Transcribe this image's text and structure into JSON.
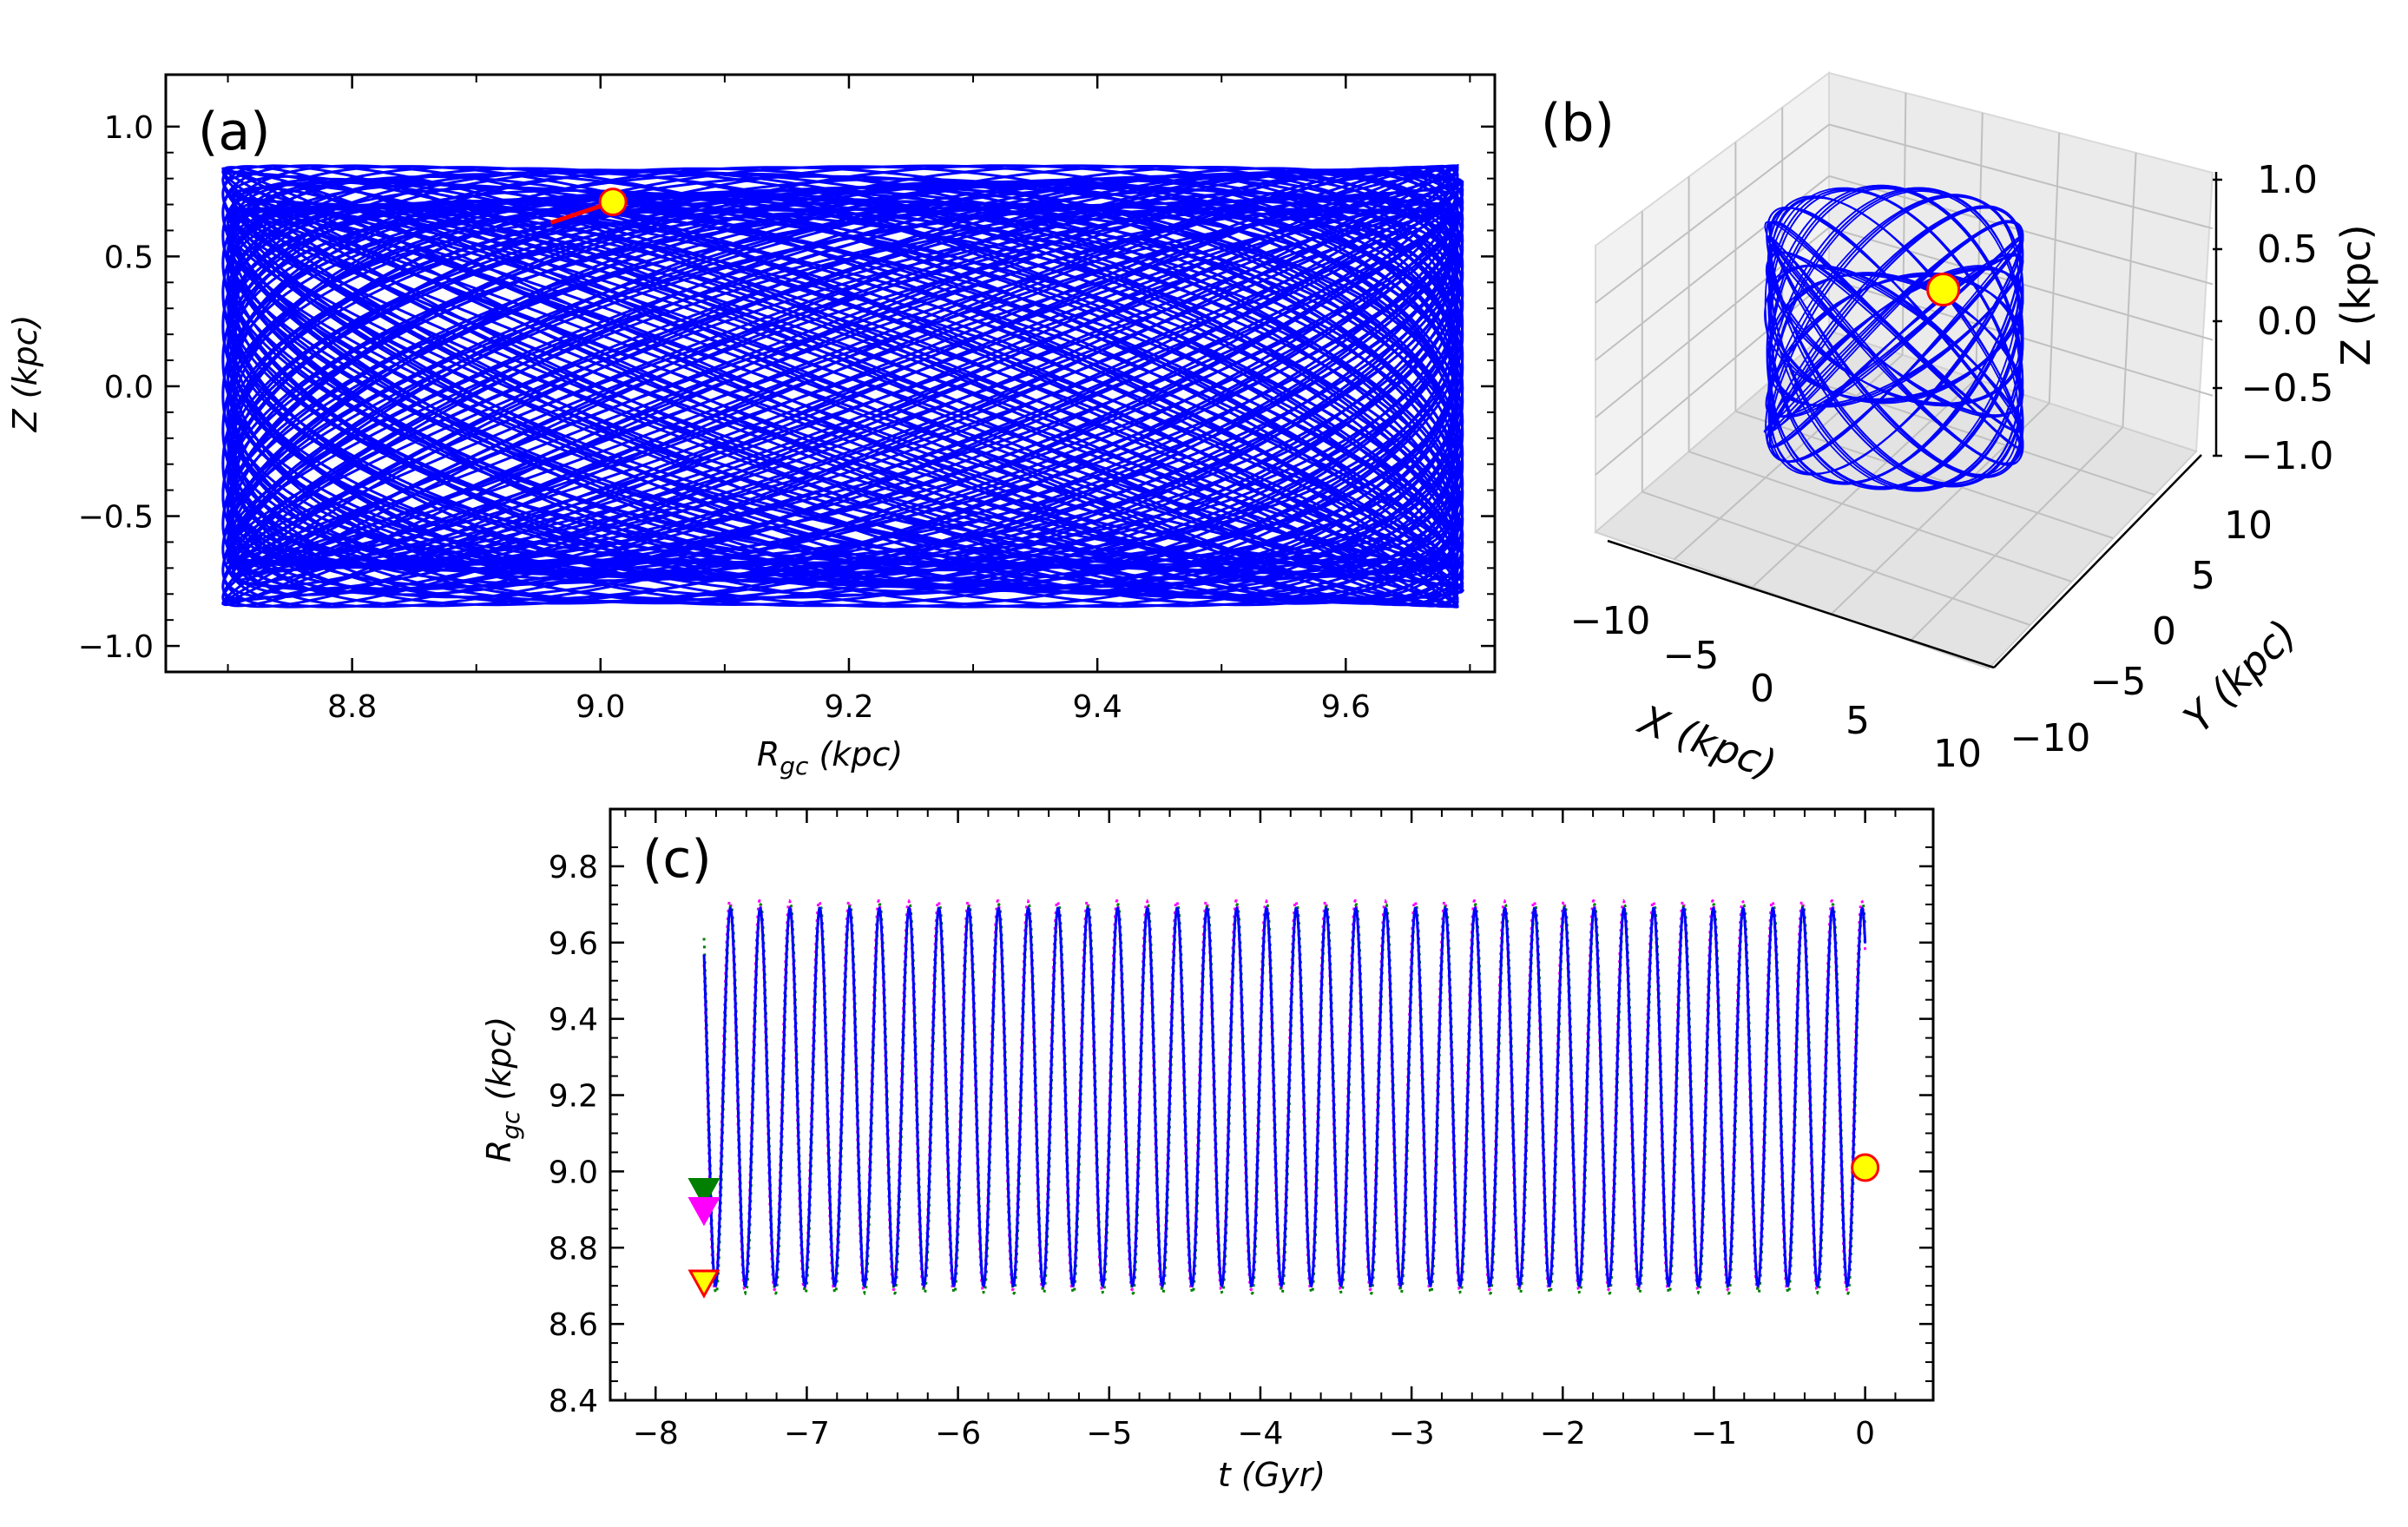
{
  "colors": {
    "orbit": "#0000ff",
    "marker_fill": "#ffff00",
    "marker_edge": "#ff0000",
    "apo": "#ff00ff",
    "peri": "#007f00",
    "pane": "#eeeeee",
    "grid3d": "#c8c8c8"
  },
  "panel_a": {
    "letter": "(a)",
    "xlabel": "R",
    "xlabel_sub": "gc",
    "xlabel_unit": " (kpc)",
    "ylabel": "Z (kpc)",
    "xlim": [
      8.65,
      9.72
    ],
    "ylim": [
      -1.1,
      1.2
    ],
    "xticks": [
      "8.8",
      "9.0",
      "9.2",
      "9.4",
      "9.6"
    ],
    "yticks": [
      "−1.0",
      "−0.5",
      "0.0",
      "0.5",
      "1.0"
    ]
  },
  "panel_b": {
    "letter": "(b)",
    "xlabel": "X (kpc)",
    "ylabel": "Y (kpc)",
    "zlabel": "Z (kpc)",
    "xticks": [
      "−10",
      "−5",
      "0",
      "5",
      "10"
    ],
    "yticks": [
      "−10",
      "−5",
      "0",
      "5",
      "10"
    ],
    "zticks": [
      "−1.0",
      "−0.5",
      "0.0",
      "0.5",
      "1.0"
    ]
  },
  "panel_c": {
    "letter": "(c)",
    "xlabel": "t (Gyr)",
    "ylabel": "R",
    "ylabel_sub": "gc",
    "ylabel_unit": " (kpc)",
    "xlim": [
      -8.3,
      0.45
    ],
    "ylim": [
      8.4,
      9.95
    ],
    "xticks": [
      "−8",
      "−7",
      "−6",
      "−5",
      "−4",
      "−3",
      "−2",
      "−1",
      "0"
    ],
    "yticks": [
      "8.4",
      "8.6",
      "8.8",
      "9.0",
      "9.2",
      "9.4",
      "9.6",
      "9.8"
    ]
  },
  "chart_data": [
    {
      "type": "line",
      "panel": "(a)",
      "xlabel": "R_gc (kpc)",
      "ylabel": "Z (kpc)",
      "xlim": [
        8.65,
        9.72
      ],
      "ylim": [
        -1.1,
        1.2
      ],
      "orbit": {
        "r_min": 8.7,
        "r_max": 9.69,
        "z_amp": 0.85,
        "radial_cycles": 39,
        "vertical_cycles": 47
      },
      "current_position": {
        "x": 9.01,
        "y": 0.71
      }
    },
    {
      "type": "line",
      "panel": "(b)",
      "projection": "3d",
      "xlabel": "X (kpc)",
      "ylabel": "Y (kpc)",
      "zlabel": "Z (kpc)",
      "xlim": [
        -10,
        10
      ],
      "ylim": [
        -10,
        10
      ],
      "zlim": [
        -1.0,
        1.0
      ],
      "current_position": {
        "x": 8.5,
        "y": 3.0,
        "z": 0.71
      }
    },
    {
      "type": "line",
      "panel": "(c)",
      "xlabel": "t (Gyr)",
      "ylabel": "R_gc (kpc)",
      "xlim": [
        -8.3,
        0.45
      ],
      "ylim": [
        8.4,
        9.95
      ],
      "orbit": {
        "r_min": 8.7,
        "r_max": 9.69,
        "t_start": -7.68,
        "t_end": 0.0,
        "period_gyr": 0.197
      },
      "current_position": {
        "x": 0.0,
        "y": 9.01
      },
      "markers": [
        {
          "x": -7.68,
          "y": 8.95,
          "shape": "triangle-down",
          "color": "#007f00"
        },
        {
          "x": -7.68,
          "y": 8.9,
          "shape": "triangle-down",
          "color": "#ff00ff"
        },
        {
          "x": -7.68,
          "y": 8.71,
          "shape": "triangle-down",
          "color": "#ffff00"
        }
      ]
    }
  ]
}
